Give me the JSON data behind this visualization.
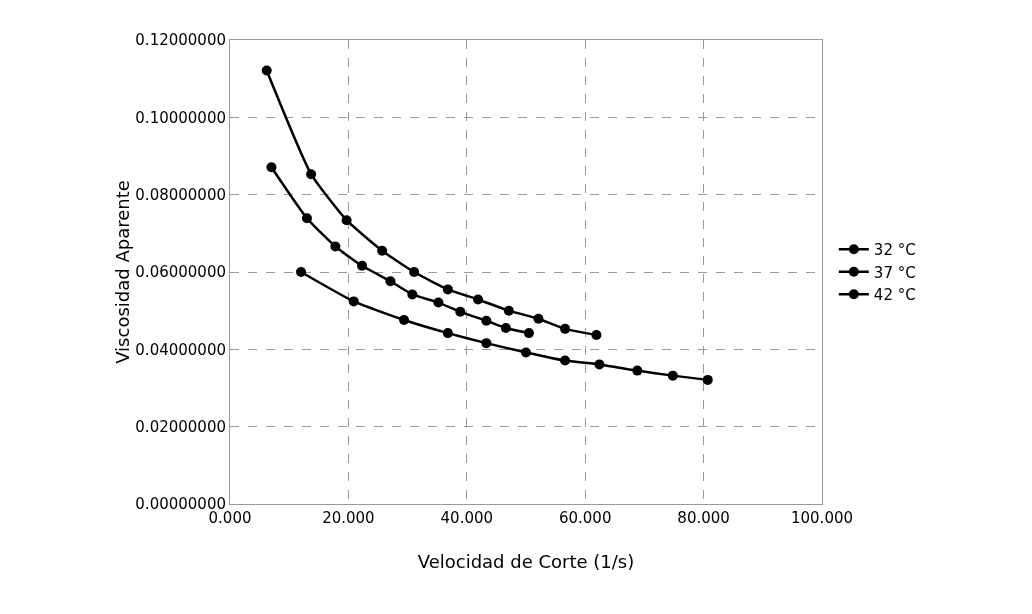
{
  "chart_data": {
    "type": "line",
    "xlabel": "Velocidad de Corte (1/s)",
    "ylabel": "Viscosidad Aparente",
    "xlim": [
      0,
      100
    ],
    "xticks": [
      {
        "value": 0,
        "label": "0.000"
      },
      {
        "value": 20,
        "label": "20.000"
      },
      {
        "value": 40,
        "label": "40.000"
      },
      {
        "value": 60,
        "label": "60.000"
      },
      {
        "value": 80,
        "label": "80.000"
      },
      {
        "value": 100,
        "label": "100.000"
      }
    ],
    "ylim": [
      0,
      0.12
    ],
    "yticks": [
      {
        "value": 0,
        "label": "0.00000000"
      },
      {
        "value": 0.02,
        "label": "0.02000000"
      },
      {
        "value": 0.04,
        "label": "0.04000000"
      },
      {
        "value": 0.06,
        "label": "0.06000000"
      },
      {
        "value": 0.08,
        "label": "0.08000000"
      },
      {
        "value": 0.1,
        "label": "0.10000000"
      },
      {
        "value": 0.12,
        "label": "0.12000000"
      }
    ],
    "grid": true,
    "legend": "right",
    "marker": "circle",
    "line_style": "solid",
    "series": [
      {
        "name": "32 °C",
        "color": "#000000",
        "x": [
          6.2,
          13.7,
          19.7,
          25.7,
          31.1,
          36.8,
          41.9,
          47.1,
          52.1,
          56.6,
          61.9
        ],
        "values": [
          0.1121,
          0.0853,
          0.0734,
          0.0655,
          0.06,
          0.0555,
          0.0529,
          0.05,
          0.0479,
          0.0453,
          0.0437
        ]
      },
      {
        "name": "37 °C",
        "color": "#000000",
        "x": [
          7.0,
          13.0,
          17.8,
          22.3,
          27.1,
          30.8,
          35.2,
          38.9,
          43.3,
          46.6,
          50.5
        ],
        "values": [
          0.0871,
          0.0739,
          0.0666,
          0.0616,
          0.0576,
          0.0542,
          0.0521,
          0.0497,
          0.0474,
          0.0455,
          0.0442
        ]
      },
      {
        "name": "42 °C",
        "color": "#000000",
        "x": [
          12.0,
          20.9,
          29.4,
          36.8,
          43.3,
          50.0,
          56.6,
          62.4,
          68.8,
          74.8,
          80.7
        ],
        "values": [
          0.06,
          0.0524,
          0.0476,
          0.0442,
          0.0416,
          0.0392,
          0.0371,
          0.0361,
          0.0345,
          0.0332,
          0.0321
        ]
      }
    ]
  }
}
